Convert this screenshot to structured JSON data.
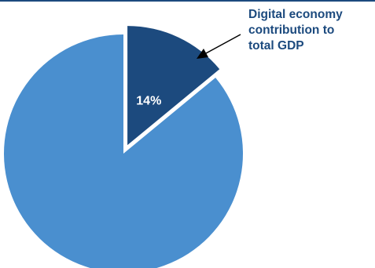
{
  "colors": {
    "rule": "#1c4a7e",
    "highlight_slice": "#1c4a7e",
    "rest_slice": "#4a8fcf",
    "annotation_text": "#1c4a7e",
    "data_label_text": "#ffffff",
    "arrow": "#000000"
  },
  "chart_data": {
    "type": "pie",
    "title": "",
    "slices": [
      {
        "label": "Digital economy contribution to total GDP",
        "value": 14,
        "data_label": "14%",
        "exploded": true
      },
      {
        "label": "",
        "value": 86,
        "data_label": "",
        "exploded": false
      }
    ],
    "start_angle_deg": 0,
    "direction": "clockwise",
    "legend": "none"
  },
  "annotation": {
    "lines": [
      "Digital economy",
      "contribution to",
      "total GDP"
    ]
  }
}
